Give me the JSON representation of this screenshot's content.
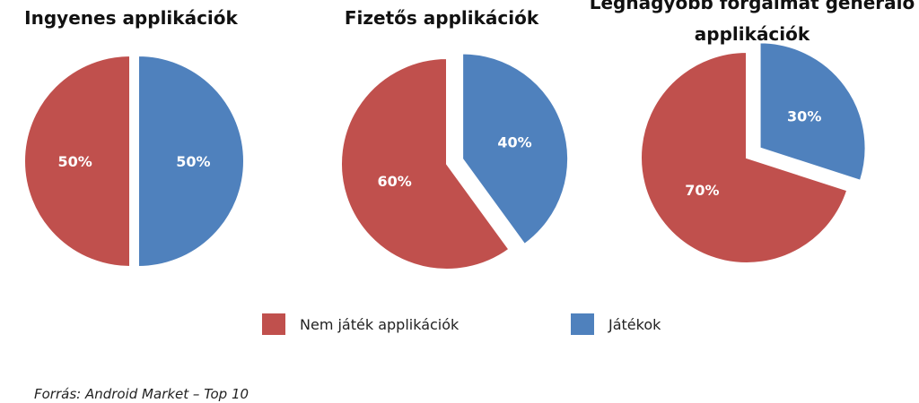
{
  "colors": {
    "nem_jatek": "#C0504D",
    "jatekok": "#4F81BD"
  },
  "legend": [
    {
      "label": "Nem játék applikációk",
      "color": "#C0504D"
    },
    {
      "label": "Játékok",
      "color": "#4F81BD"
    }
  ],
  "source": "Forrás: Android Market – Top 10",
  "chart_data": [
    {
      "type": "pie",
      "title": "Ingyenes applikációk",
      "slices": [
        {
          "name": "Nem játék applikációk",
          "value": 50,
          "label": "50%",
          "exploded": false
        },
        {
          "name": "Játékok",
          "value": 50,
          "label": "50%",
          "exploded": true
        }
      ]
    },
    {
      "type": "pie",
      "title": "Fizetős applikációk",
      "slices": [
        {
          "name": "Nem játék applikációk",
          "value": 60,
          "label": "60%",
          "exploded": false
        },
        {
          "name": "Játékok",
          "value": 40,
          "label": "40%",
          "exploded": true
        }
      ]
    },
    {
      "type": "pie",
      "title": "Legnagyobb forgalmat generáló applikációk",
      "slices": [
        {
          "name": "Nem játék applikációk",
          "value": 70,
          "label": "70%",
          "exploded": false
        },
        {
          "name": "Játékok",
          "value": 30,
          "label": "30%",
          "exploded": true
        }
      ]
    }
  ]
}
